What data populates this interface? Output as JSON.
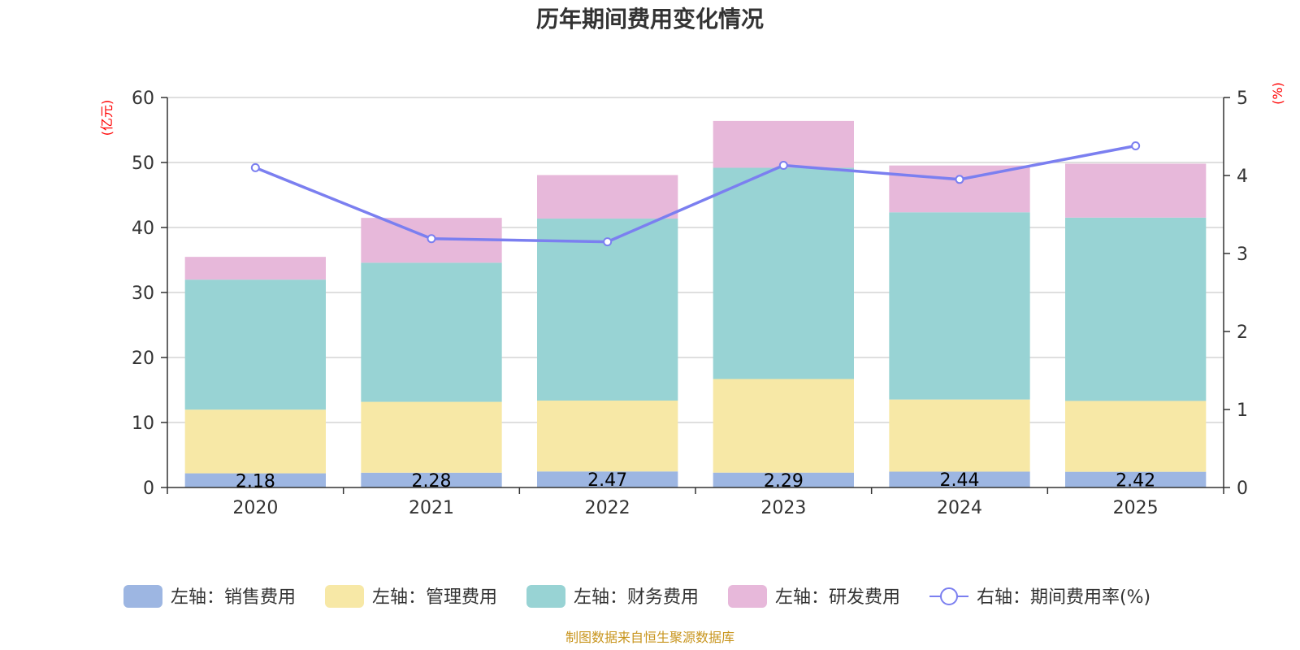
{
  "chart_data": {
    "type": "bar",
    "title": "历年期间费用变化情况",
    "left_axis_unit": "(亿元)",
    "right_axis_unit": "(%)",
    "categories": [
      "2020",
      "2021",
      "2022",
      "2023",
      "2024",
      "2025"
    ],
    "ylim": [
      0,
      60
    ],
    "y_ticks": [
      0,
      10,
      20,
      30,
      40,
      50,
      60
    ],
    "y2lim": [
      0,
      5
    ],
    "y2_ticks": [
      0,
      1,
      2,
      3,
      4,
      5
    ],
    "grid": true,
    "stacked": true,
    "series": [
      {
        "name": "左轴：销售费用",
        "axis": "left",
        "type": "bar",
        "color": "#9db6e2",
        "values": [
          2.18,
          2.28,
          2.47,
          2.29,
          2.44,
          2.42
        ],
        "labels": [
          "2.18",
          "2.28",
          "2.47",
          "2.29",
          "2.44",
          "2.42"
        ]
      },
      {
        "name": "左轴：管理费用",
        "axis": "left",
        "type": "bar",
        "color": "#f7e8a6",
        "values": [
          9.8,
          10.9,
          10.9,
          14.4,
          11.1,
          10.9
        ]
      },
      {
        "name": "左轴：财务费用",
        "axis": "left",
        "type": "bar",
        "color": "#98d3d4",
        "values": [
          20.0,
          21.4,
          28.0,
          32.5,
          28.8,
          28.2
        ]
      },
      {
        "name": "左轴：研发费用",
        "axis": "left",
        "type": "bar",
        "color": "#e7b8da",
        "values": [
          3.5,
          6.9,
          6.7,
          7.2,
          7.2,
          8.3
        ]
      },
      {
        "name": "右轴：期间费用率(%)",
        "axis": "right",
        "type": "line",
        "color": "#7b7ff0",
        "values": [
          4.1,
          3.19,
          3.15,
          4.13,
          3.95,
          4.38
        ]
      }
    ],
    "legend_position": "bottom",
    "source": "制图数据来自恒生聚源数据库"
  }
}
